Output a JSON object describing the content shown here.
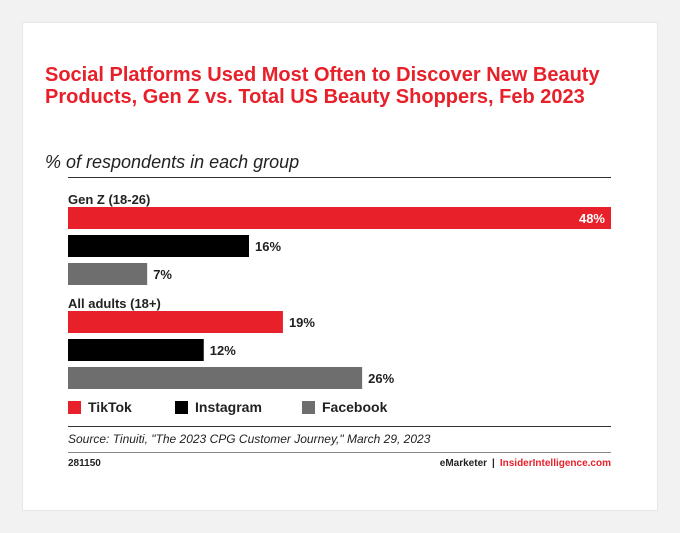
{
  "chart_data": {
    "type": "bar",
    "orientation": "horizontal",
    "title": "Social Platforms Used Most Often to Discover New Beauty Products, Gen Z vs. Total US Beauty Shoppers, Feb 2023",
    "subtitle": "% of respondents in each group",
    "groups": [
      "Gen Z (18-26)",
      "All adults (18+)"
    ],
    "series": [
      {
        "name": "TikTok",
        "color": "#e8202a",
        "values": [
          48,
          19
        ],
        "labels": [
          "48%",
          "19%"
        ]
      },
      {
        "name": "Instagram",
        "color": "#000000",
        "values": [
          16,
          12
        ],
        "labels": [
          "16%",
          "12%"
        ]
      },
      {
        "name": "Facebook",
        "color": "#6e6e6e",
        "values": [
          7,
          26
        ],
        "labels": [
          "7%",
          "26%"
        ]
      }
    ],
    "xlim": [
      0,
      48
    ],
    "unit": "%",
    "grid": false,
    "legend_position": "bottom-left",
    "source": "Source: Tinuiti, \"The 2023 CPG Customer Journey,\" March 29, 2023",
    "chart_id": "281150",
    "credits": {
      "left": "eMarketer",
      "separator": "|",
      "right": "InsiderIntelligence.com"
    }
  }
}
